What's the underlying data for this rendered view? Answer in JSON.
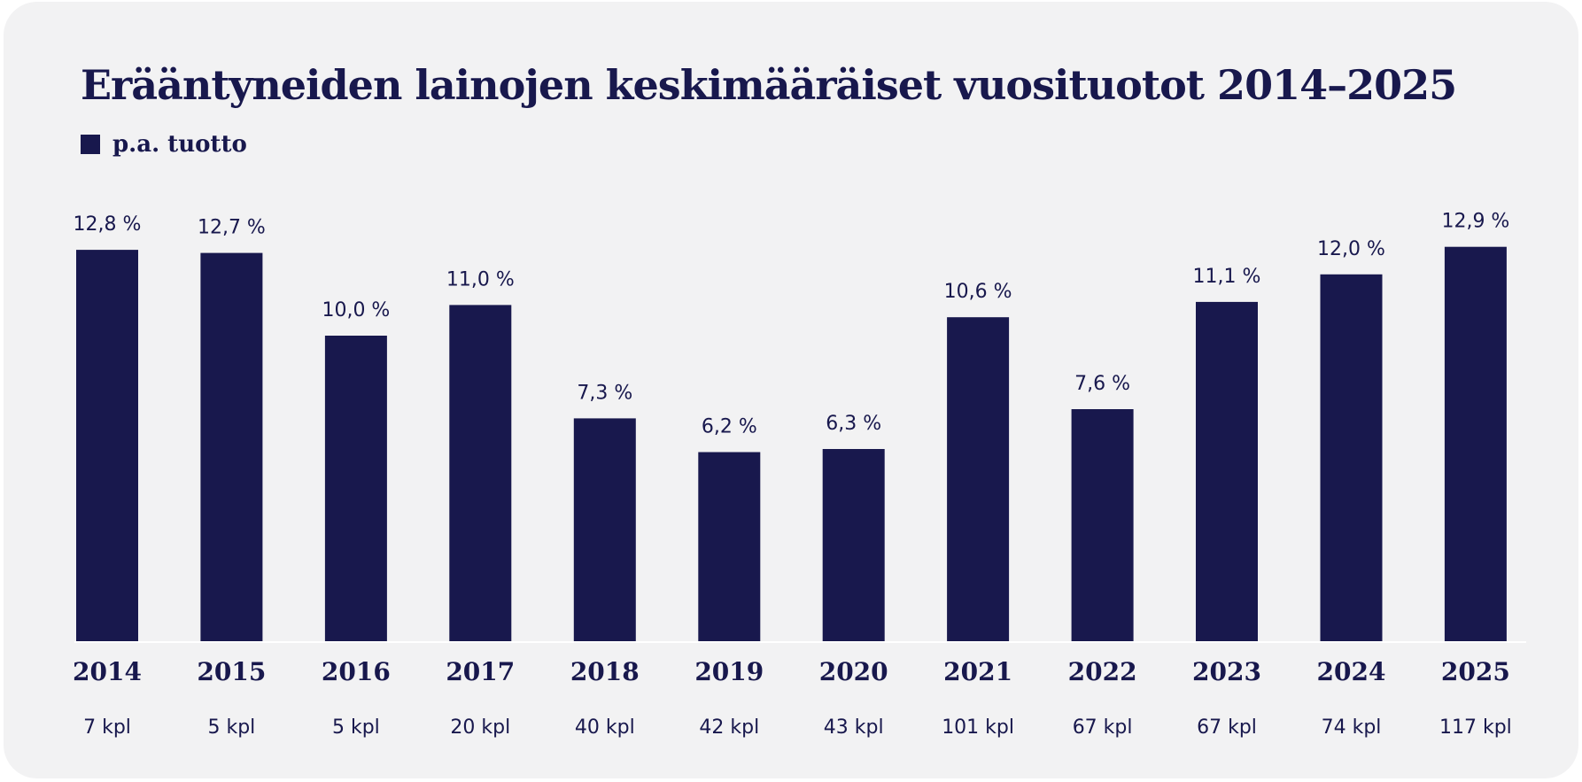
{
  "colors": {
    "background": "#f2f2f3",
    "bar": "#18184d",
    "text": "#18184d",
    "baseline": "#ffffff"
  },
  "chart_data": {
    "type": "bar",
    "title": "Erääntyneiden lainojen keskimääräiset vuosituotot 2014–2025",
    "legend": "top-left",
    "grid": false,
    "ylim": [
      0,
      15
    ],
    "categories": [
      "2014",
      "2015",
      "2016",
      "2017",
      "2018",
      "2019",
      "2020",
      "2021",
      "2022",
      "2023",
      "2024",
      "2025"
    ],
    "series": [
      {
        "name": "p.a. tuotto",
        "values": [
          12.8,
          12.7,
          10.0,
          11.0,
          7.3,
          6.2,
          6.3,
          10.6,
          7.6,
          11.1,
          12.0,
          12.9
        ],
        "labels": [
          "12,8 %",
          "12,7 %",
          "10,0 %",
          "11,0 %",
          "7,3 %",
          "6,2 %",
          "6,3 %",
          "10,6 %",
          "7,6 %",
          "11,1 %",
          "12,0 %",
          "12,9 %"
        ]
      }
    ],
    "counts": [
      "7 kpl",
      "5 kpl",
      "5 kpl",
      "20 kpl",
      "40 kpl",
      "42 kpl",
      "43 kpl",
      "101 kpl",
      "67 kpl",
      "67 kpl",
      "74 kpl",
      "117 kpl"
    ]
  }
}
